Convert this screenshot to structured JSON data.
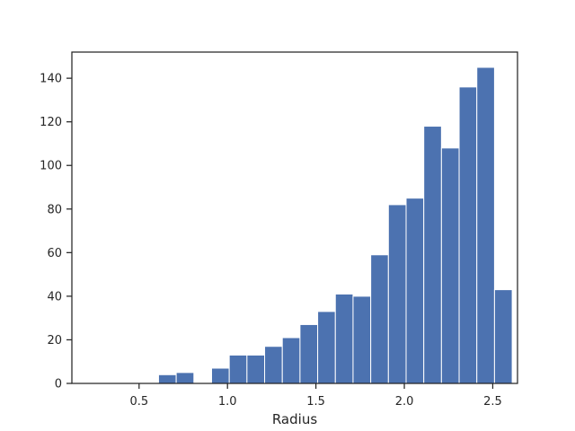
{
  "chart_data": {
    "type": "bar",
    "title": "",
    "xlabel": "Radius",
    "ylabel": "",
    "xlim": [
      0.12,
      2.64
    ],
    "ylim": [
      0,
      152
    ],
    "grid": false,
    "bar_color": "#4c72b0",
    "bar_edge_color": "#ffffff",
    "xticks": [
      {
        "value": 0.5,
        "label": "0.5"
      },
      {
        "value": 1.0,
        "label": "1.0"
      },
      {
        "value": 1.5,
        "label": "1.5"
      },
      {
        "value": 2.0,
        "label": "2.0"
      },
      {
        "value": 2.5,
        "label": "2.5"
      }
    ],
    "yticks": [
      {
        "value": 0,
        "label": "0"
      },
      {
        "value": 20,
        "label": "20"
      },
      {
        "value": 40,
        "label": "40"
      },
      {
        "value": 60,
        "label": "60"
      },
      {
        "value": 80,
        "label": "80"
      },
      {
        "value": 100,
        "label": "100"
      },
      {
        "value": 120,
        "label": "120"
      },
      {
        "value": 140,
        "label": "140"
      }
    ],
    "bins": [
      {
        "start": 0.21,
        "end": 0.31,
        "count": 0
      },
      {
        "start": 0.31,
        "end": 0.41,
        "count": 0
      },
      {
        "start": 0.41,
        "end": 0.51,
        "count": 0
      },
      {
        "start": 0.51,
        "end": 0.61,
        "count": 0
      },
      {
        "start": 0.61,
        "end": 0.71,
        "count": 4
      },
      {
        "start": 0.71,
        "end": 0.81,
        "count": 5
      },
      {
        "start": 0.81,
        "end": 0.91,
        "count": 0
      },
      {
        "start": 0.91,
        "end": 1.01,
        "count": 7
      },
      {
        "start": 1.01,
        "end": 1.11,
        "count": 13
      },
      {
        "start": 1.11,
        "end": 1.21,
        "count": 13
      },
      {
        "start": 1.21,
        "end": 1.31,
        "count": 17
      },
      {
        "start": 1.31,
        "end": 1.41,
        "count": 21
      },
      {
        "start": 1.41,
        "end": 1.51,
        "count": 27
      },
      {
        "start": 1.51,
        "end": 1.61,
        "count": 33
      },
      {
        "start": 1.61,
        "end": 1.71,
        "count": 41
      },
      {
        "start": 1.71,
        "end": 1.81,
        "count": 40
      },
      {
        "start": 1.81,
        "end": 1.91,
        "count": 59
      },
      {
        "start": 1.91,
        "end": 2.01,
        "count": 82
      },
      {
        "start": 2.01,
        "end": 2.11,
        "count": 85
      },
      {
        "start": 2.11,
        "end": 2.21,
        "count": 118
      },
      {
        "start": 2.21,
        "end": 2.31,
        "count": 108
      },
      {
        "start": 2.31,
        "end": 2.41,
        "count": 136
      },
      {
        "start": 2.41,
        "end": 2.51,
        "count": 145
      },
      {
        "start": 2.51,
        "end": 2.61,
        "count": 43
      }
    ]
  }
}
